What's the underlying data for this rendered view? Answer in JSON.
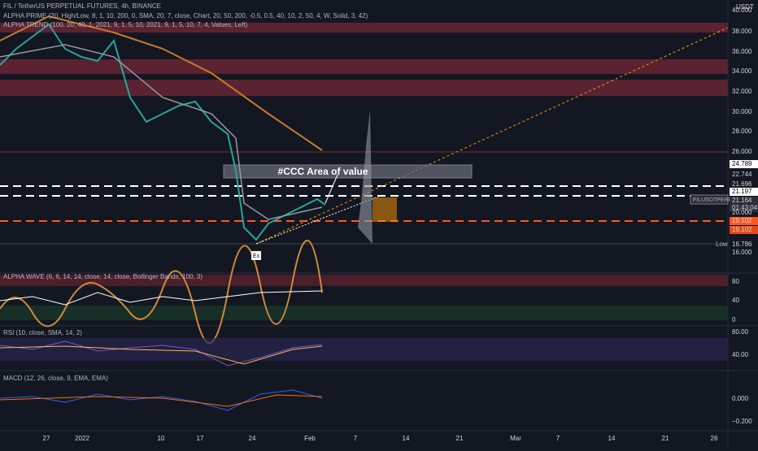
{
  "header": {
    "symbol": "FIL / TetherUS PERPETUAL FUTURES, 4h, BINANCE",
    "indicator_1": "ALPHA PRIME (20, High/Low, 8, 1, 10, 200, 0, SMA, 20, 7, close, Chart, 20, 50, 200, -0.5, 0.5, 40, 10, 2, 50, 4, W, Solid, 3, 42)",
    "indicator_2": "ALPHA TREND (100, 20, 40, 1, 2021, 9, 1, 5, 10, 2021, 9, 1, 5, 10, 7, 4, Values, Left)"
  },
  "annotations": {
    "area": "#CCC Area of value",
    "entry": "Ex",
    "low": "Low",
    "symbol_tag": "FILUSDTPERP"
  },
  "price_axis": {
    "unit": "USDT",
    "labels": [
      "40.000",
      "38.000",
      "36.000",
      "34.000",
      "32.000",
      "30.000",
      "28.000",
      "26.000",
      "24.789",
      "22.744",
      "21.696",
      "21.197",
      "21.164",
      "01:43:04",
      "20.000",
      "19.102",
      "19.102",
      "16.786",
      "16.000"
    ]
  },
  "panes": {
    "wave": {
      "title": "ALPHA WAVE (6, 6, 14, 14, close, 14, close, Bollinger Bands, 100, 3)",
      "axis": [
        "80",
        "40",
        "0"
      ]
    },
    "rsi": {
      "title": "RSI (10, close, SMA, 14, 2)",
      "axis": [
        "80.00",
        "40.00"
      ]
    },
    "macd": {
      "title": "MACD (12, 26, close, 9, EMA, EMA)",
      "axis": [
        "0.000",
        "−0.200"
      ]
    }
  },
  "time_axis": [
    "27",
    "2022",
    "10",
    "17",
    "24",
    "Feb",
    "7",
    "14",
    "21",
    "Mar",
    "7",
    "14",
    "21",
    "26"
  ]
}
